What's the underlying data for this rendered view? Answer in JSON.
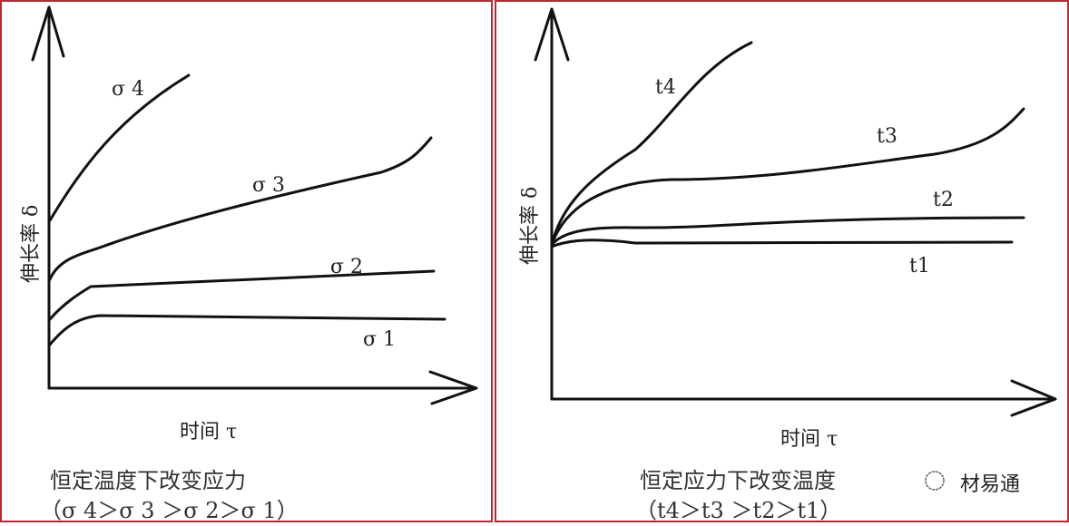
{
  "left_panel": {
    "y_axis_label": "伸长率 δ",
    "x_axis_label": "时间 τ",
    "curve_labels": [
      "σ 4",
      "σ 3",
      "σ 2",
      "σ 1"
    ],
    "caption_line1": "恒定温度下改变应力",
    "caption_line2": "（σ 4＞σ 3 ＞σ 2＞σ 1）"
  },
  "right_panel": {
    "y_axis_label": "伸长率 δ",
    "x_axis_label": "时间 τ",
    "curve_labels": [
      "t4",
      "t3",
      "t2",
      "t1"
    ],
    "caption_line1": "恒定应力下改变温度",
    "caption_line2": "（t4＞t3 ＞t2＞t1）"
  },
  "watermark": "材易通",
  "colors": {
    "border": "#c0262c",
    "line": "#111111"
  }
}
